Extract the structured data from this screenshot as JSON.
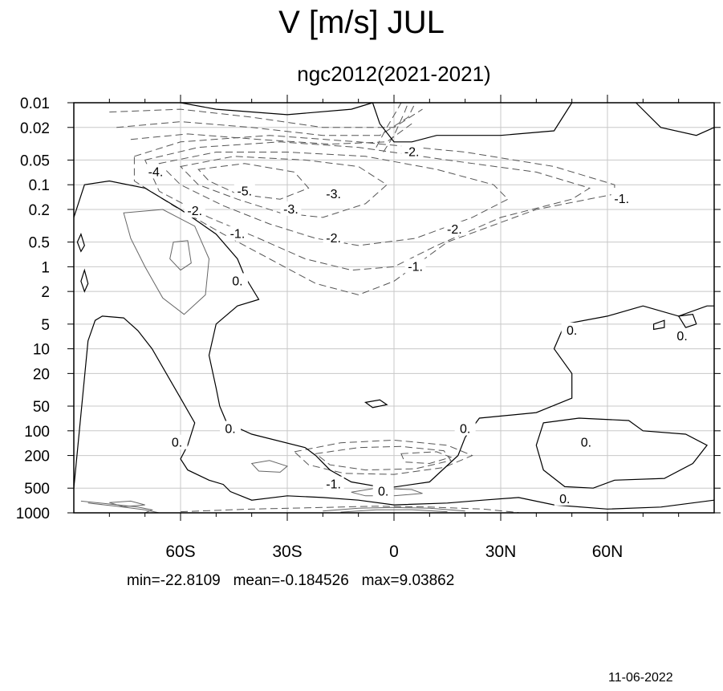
{
  "title": "V [m/s] JUL",
  "subtitle": "ngc2012(2021-2021)",
  "stats": {
    "min": "min=-22.8109",
    "mean": "mean=-0.184526",
    "max": "max=9.03862"
  },
  "date": "11-06-2022",
  "chart_data": {
    "type": "contour",
    "title": "V [m/s] JUL",
    "subtitle": "ngc2012(2021-2021)",
    "x_tick_labels": [
      "60S",
      "30S",
      "0",
      "30N",
      "60N"
    ],
    "x_tick_values": [
      -60,
      -30,
      0,
      30,
      60
    ],
    "xlim": [
      -90,
      90
    ],
    "y_tick_labels": [
      "0.01",
      "0.02",
      "0.05",
      "0.1",
      "0.2",
      "0.5",
      "1",
      "2",
      "5",
      "10",
      "20",
      "50",
      "100",
      "200",
      "500",
      "1000"
    ],
    "y_tick_values": [
      0.01,
      0.02,
      0.05,
      0.1,
      0.2,
      0.5,
      1,
      2,
      5,
      10,
      20,
      50,
      100,
      200,
      500,
      1000
    ],
    "ylim": [
      0.01,
      1000
    ],
    "y_scale": "log",
    "y_inverted": true,
    "grid": true,
    "contour_labels": [
      {
        "text": "-2.",
        "x": 5,
        "y": 0.04
      },
      {
        "text": "-4.",
        "x": -67,
        "y": 0.07
      },
      {
        "text": "-5.",
        "x": -42,
        "y": 0.12
      },
      {
        "text": "-3.",
        "x": -17,
        "y": 0.13
      },
      {
        "text": "-3.",
        "x": -29,
        "y": 0.2
      },
      {
        "text": "-2.",
        "x": -56,
        "y": 0.21
      },
      {
        "text": "-1.",
        "x": 64,
        "y": 0.15
      },
      {
        "text": "-1.",
        "x": -44,
        "y": 0.4
      },
      {
        "text": "-2.",
        "x": -17,
        "y": 0.45
      },
      {
        "text": "-2.",
        "x": 17,
        "y": 0.35
      },
      {
        "text": "-1.",
        "x": 6,
        "y": 1.0
      },
      {
        "text": "0.",
        "x": -44,
        "y": 1.5
      },
      {
        "text": "0.",
        "x": 50,
        "y": 6
      },
      {
        "text": "0.",
        "x": 81,
        "y": 7
      },
      {
        "text": "0.",
        "x": 20,
        "y": 95
      },
      {
        "text": "0.",
        "x": -46,
        "y": 95
      },
      {
        "text": "0.",
        "x": -61,
        "y": 140
      },
      {
        "text": "0.",
        "x": 54,
        "y": 140
      },
      {
        "text": "-1.",
        "x": -17,
        "y": 450
      },
      {
        "text": "0.",
        "x": -3,
        "y": 550
      },
      {
        "text": "0.",
        "x": 48,
        "y": 680
      }
    ],
    "contour_levels_note": "",
    "line_styles": {
      "negative": "dashed",
      "zero_positive": "solid"
    }
  }
}
